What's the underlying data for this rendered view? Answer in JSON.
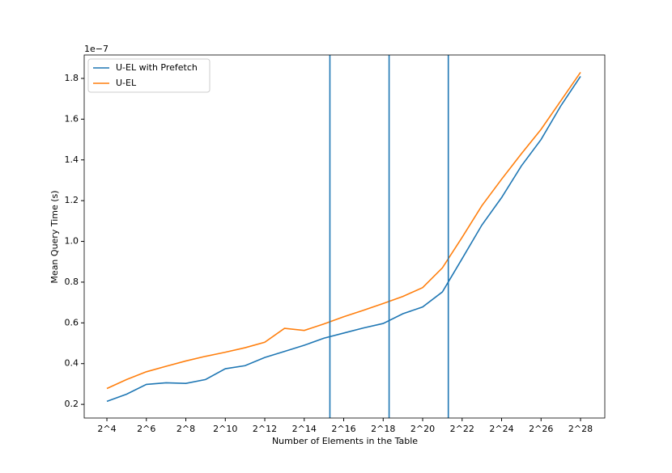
{
  "chart_data": {
    "type": "line",
    "xlabel": "Number of Elements in the Table",
    "ylabel": "Mean Query Time (s)",
    "y_offset_label": "1e−7",
    "x": [
      4,
      5,
      6,
      7,
      8,
      9,
      10,
      11,
      12,
      13,
      14,
      15,
      16,
      17,
      18,
      19,
      20,
      21,
      22,
      23,
      24,
      25,
      26,
      27,
      28
    ],
    "series": [
      {
        "name": "U-EL with Prefetch",
        "color": "#1f77b4",
        "values": [
          0.215,
          0.25,
          0.298,
          0.306,
          0.303,
          0.322,
          0.375,
          0.39,
          0.43,
          0.46,
          0.49,
          0.525,
          0.55,
          0.575,
          0.597,
          0.645,
          0.678,
          0.752,
          0.915,
          1.08,
          1.215,
          1.37,
          1.5,
          1.665,
          1.81
        ]
      },
      {
        "name": "U-EL",
        "color": "#ff7f0e",
        "values": [
          0.278,
          0.322,
          0.36,
          0.387,
          0.413,
          0.436,
          0.456,
          0.478,
          0.505,
          0.573,
          0.563,
          0.595,
          0.63,
          0.662,
          0.695,
          0.73,
          0.773,
          0.87,
          1.02,
          1.175,
          1.305,
          1.43,
          1.55,
          1.69,
          1.83
        ]
      }
    ],
    "vlines": [
      15.3,
      18.3,
      21.3
    ],
    "vline_color": "#1f77b4",
    "xlim": [
      2.85,
      29.23
    ],
    "ylim": [
      0.133,
      1.915
    ],
    "xticks": [
      {
        "value": 4,
        "label": "2^4"
      },
      {
        "value": 6,
        "label": "2^6"
      },
      {
        "value": 8,
        "label": "2^8"
      },
      {
        "value": 10,
        "label": "2^10"
      },
      {
        "value": 12,
        "label": "2^12"
      },
      {
        "value": 14,
        "label": "2^14"
      },
      {
        "value": 16,
        "label": "2^16"
      },
      {
        "value": 18,
        "label": "2^18"
      },
      {
        "value": 20,
        "label": "2^20"
      },
      {
        "value": 22,
        "label": "2^22"
      },
      {
        "value": 24,
        "label": "2^24"
      },
      {
        "value": 26,
        "label": "2^26"
      },
      {
        "value": 28,
        "label": "2^28"
      }
    ],
    "yticks": [
      0.2,
      0.4,
      0.6,
      0.8,
      {
        "value": 1.0,
        "label": "1.0"
      },
      1.2,
      1.4,
      1.6,
      1.8
    ],
    "legend": "upper left"
  }
}
